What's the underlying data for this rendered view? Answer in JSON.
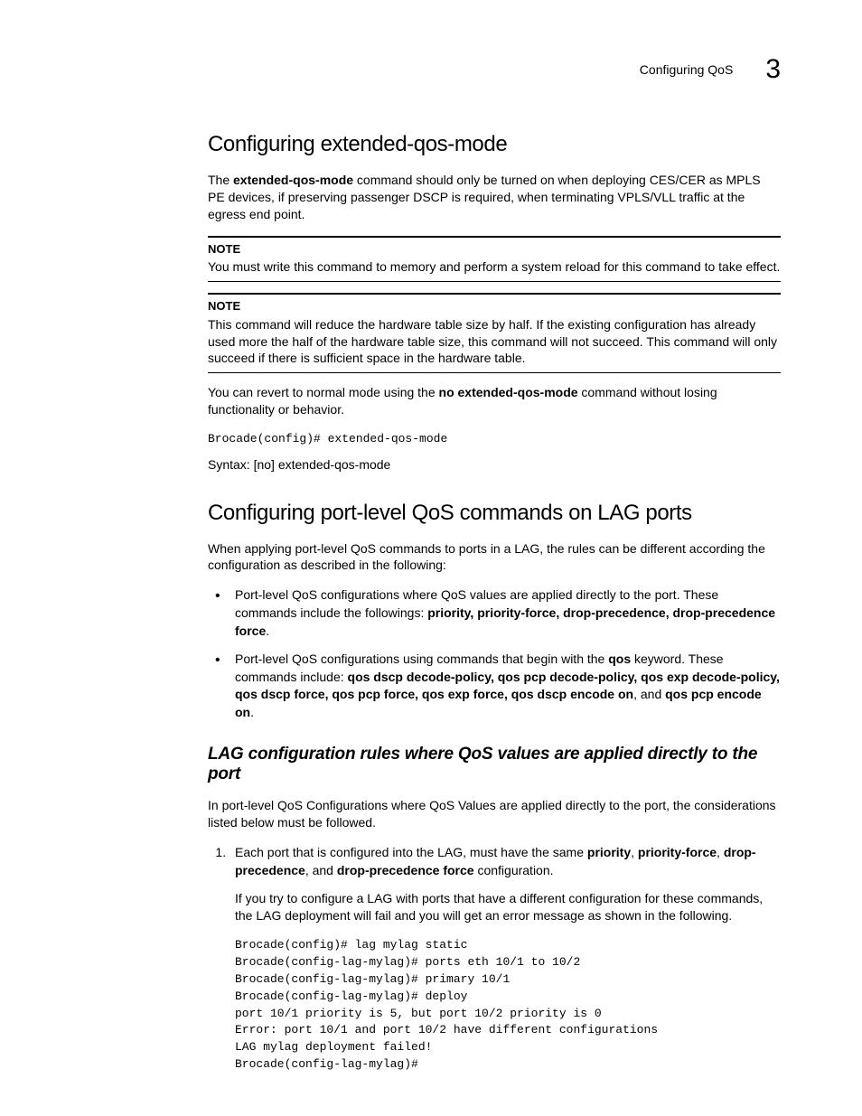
{
  "header": {
    "title": "Configuring QoS",
    "chapter_num": "3"
  },
  "section1": {
    "heading": "Configuring extended-qos-mode",
    "intro_pre": "The ",
    "intro_bold": "extended-qos-mode",
    "intro_post": " command should only be turned on when deploying CES/CER as MPLS PE devices, if preserving passenger DSCP is required, when terminating VPLS/VLL traffic at the egress end point.",
    "note1_label": "NOTE",
    "note1_text": "You must write this command to memory and perform a system reload for this command to take effect.",
    "note2_label": "NOTE",
    "note2_text": "This command will reduce the hardware table size by half. If the existing configuration has already used more the half of the hardware table size, this command will not succeed. This command will only succeed if there is sufficient space in the hardware table.",
    "revert_pre": "You can revert to normal mode using the ",
    "revert_bold": "no extended-qos-mode",
    "revert_post": " command without losing functionality or behavior.",
    "code": "Brocade(config)# extended-qos-mode",
    "syntax": "Syntax:  [no] extended-qos-mode"
  },
  "section2": {
    "heading": "Configuring port-level QoS commands on LAG ports",
    "intro": "When applying port-level QoS commands to ports in a LAG, the rules can be different according the configuration as described in the following:",
    "bullet1_pre": "Port-level QoS configurations where QoS values are applied directly to the port. These commands include the followings: ",
    "bullet1_bold": "priority, priority-force, drop-precedence, drop-precedence force",
    "bullet1_post": ".",
    "bullet2_pre": "Port-level QoS configurations using commands that begin with the ",
    "bullet2_bold1": "qos",
    "bullet2_mid1": " keyword. These commands include:   ",
    "bullet2_bold2": "qos dscp decode-policy, qos pcp decode-policy, qos exp decode-policy, qos dscp force, qos pcp force, qos exp force, qos dscp encode on",
    "bullet2_mid2": ", and ",
    "bullet2_bold3": "qos pcp encode on",
    "bullet2_post": "."
  },
  "section3": {
    "heading": "LAG configuration rules where QoS values are applied directly to the port",
    "intro": "In port-level QoS Configurations where QoS Values are applied directly to the port, the considerations listed below must be followed.",
    "item1_pre": "Each port that is configured into the LAG, must have the same ",
    "item1_b1": "priority",
    "item1_m1": ", ",
    "item1_b2": "priority-force",
    "item1_m2": ", ",
    "item1_b3": "drop-precedence",
    "item1_m3": ", and ",
    "item1_b4": "drop-precedence force",
    "item1_post": " configuration.",
    "item1_para2": "If you try to configure a LAG with ports that have a different configuration for these commands, the LAG deployment will fail and you will get an error message as shown in the following.",
    "code_block": "Brocade(config)# lag mylag static\nBrocade(config-lag-mylag)# ports eth 10/1 to 10/2\nBrocade(config-lag-mylag)# primary 10/1\nBrocade(config-lag-mylag)# deploy\nport 10/1 priority is 5, but port 10/2 priority is 0\nError: port 10/1 and port 10/2 have different configurations\nLAG mylag deployment failed!\nBrocade(config-lag-mylag)#"
  }
}
